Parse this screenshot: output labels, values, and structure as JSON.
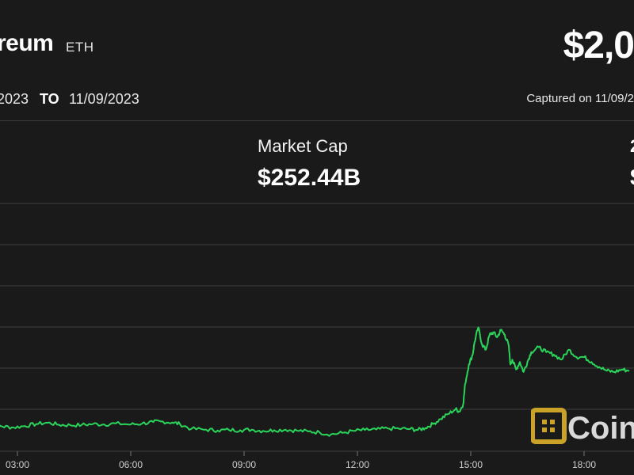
{
  "header": {
    "asset_name": "reum",
    "asset_symbol": "ETH",
    "price": "$2,0"
  },
  "date_range": {
    "from": "2023",
    "to_word": "TO",
    "to": "11/09/2023",
    "captured": "Captured on 11/09/2"
  },
  "stats": {
    "market_cap_label": "Market Cap",
    "market_cap_value": "$252.44B",
    "third_label": "2",
    "third_value": "$"
  },
  "brand": {
    "name": "Coin"
  },
  "colors": {
    "background": "#1a1a1a",
    "line": "#2ad45a",
    "grid": "#3d3d3d",
    "logo_gold": "#c9a227"
  },
  "chart_data": {
    "type": "line",
    "title": "",
    "xlabel": "",
    "ylabel": "",
    "x_ticks": [
      "03:00",
      "06:00",
      "09:00",
      "12:00",
      "15:00",
      "18:00"
    ],
    "y_range": [
      0,
      100
    ],
    "grid": "horizontal",
    "series": [
      {
        "values": [
          [
            2.0,
            11
          ],
          [
            2.3,
            12
          ],
          [
            2.6,
            10
          ],
          [
            2.9,
            9.6
          ],
          [
            3.2,
            10.2
          ],
          [
            3.5,
            11
          ],
          [
            3.8,
            11.5
          ],
          [
            4.1,
            10.7
          ],
          [
            4.4,
            10.5
          ],
          [
            4.7,
            10.6
          ],
          [
            5.0,
            11.0
          ],
          [
            5.3,
            10.8
          ],
          [
            5.6,
            11.2
          ],
          [
            6.0,
            10.8
          ],
          [
            6.3,
            11.2
          ],
          [
            6.6,
            11.8
          ],
          [
            6.8,
            12.0
          ],
          [
            7.1,
            11.6
          ],
          [
            7.3,
            11.0
          ],
          [
            7.6,
            9.0
          ],
          [
            8.0,
            8.7
          ],
          [
            8.3,
            8.4
          ],
          [
            8.6,
            8.6
          ],
          [
            8.9,
            8.5
          ],
          [
            9.2,
            8.7
          ],
          [
            9.5,
            8.2
          ],
          [
            9.8,
            8.5
          ],
          [
            10.1,
            8.7
          ],
          [
            10.4,
            8.3
          ],
          [
            10.7,
            8.0
          ],
          [
            11.0,
            7.6
          ],
          [
            11.3,
            6.8
          ],
          [
            11.6,
            7.4
          ],
          [
            11.9,
            8.2
          ],
          [
            12.2,
            8.6
          ],
          [
            12.5,
            8.8
          ],
          [
            12.8,
            9.2
          ],
          [
            13.1,
            9.1
          ],
          [
            13.4,
            9.0
          ],
          [
            13.6,
            8.6
          ],
          [
            13.8,
            9.4
          ],
          [
            14.0,
            11.0
          ],
          [
            14.2,
            13.0
          ],
          [
            14.4,
            15.0
          ],
          [
            14.6,
            17.0
          ],
          [
            14.7,
            16.0
          ],
          [
            14.8,
            19.0
          ],
          [
            14.85,
            27.0
          ],
          [
            14.95,
            35.0
          ],
          [
            15.05,
            39.0
          ],
          [
            15.1,
            44.0
          ],
          [
            15.2,
            50.0
          ],
          [
            15.3,
            43.0
          ],
          [
            15.4,
            41.0
          ],
          [
            15.5,
            47.0
          ],
          [
            15.6,
            48.0
          ],
          [
            15.7,
            46.0
          ],
          [
            15.8,
            49.0
          ],
          [
            15.9,
            47.0
          ],
          [
            16.0,
            43.0
          ],
          [
            16.05,
            35.0
          ],
          [
            16.1,
            37.0
          ],
          [
            16.2,
            33.0
          ],
          [
            16.3,
            36.0
          ],
          [
            16.4,
            32.0
          ],
          [
            16.5,
            36.0
          ],
          [
            16.6,
            40.0
          ],
          [
            16.8,
            42.0
          ],
          [
            17.0,
            40.0
          ],
          [
            17.2,
            39.0
          ],
          [
            17.4,
            37.0
          ],
          [
            17.6,
            41.0
          ],
          [
            17.8,
            38.0
          ],
          [
            18.0,
            38.0
          ],
          [
            18.2,
            36.0
          ],
          [
            18.4,
            34.0
          ],
          [
            18.6,
            32.5
          ],
          [
            18.8,
            32.0
          ],
          [
            19.0,
            33.0
          ],
          [
            19.2,
            32.5
          ]
        ]
      }
    ]
  }
}
